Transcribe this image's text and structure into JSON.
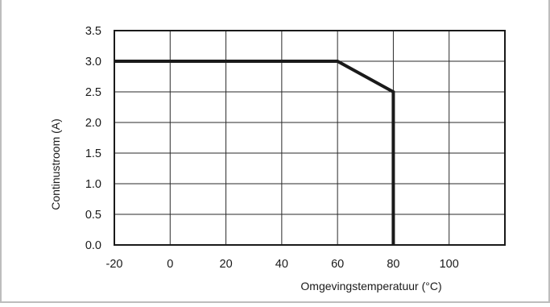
{
  "chart_data": {
    "type": "line",
    "title": "",
    "xlabel": "Omgevingstemperatuur (°C)",
    "ylabel": "Continustroom (A)",
    "xlim": [
      -20,
      120
    ],
    "ylim": [
      0,
      3.5
    ],
    "x_ticks": [
      -20,
      0,
      20,
      40,
      60,
      80,
      100
    ],
    "x_tick_labels": [
      "-20",
      "0",
      "20",
      "40",
      "60",
      "80",
      "100"
    ],
    "y_ticks": [
      0,
      0.5,
      1.0,
      1.5,
      2.0,
      2.5,
      3.0,
      3.5
    ],
    "y_tick_labels": [
      "0.0",
      "0.5",
      "1.0",
      "1.5",
      "2.0",
      "2.5",
      "3.0",
      "3.5"
    ],
    "grid": true,
    "legend": "none",
    "series": [
      {
        "x": [
          -20,
          60,
          80,
          80
        ],
        "y": [
          3.0,
          3.0,
          2.5,
          0.0
        ],
        "color": "#1a1a1a"
      }
    ],
    "colors": {
      "frame_border": "#bdbdbd",
      "grid": "#2a2a2a",
      "axes": "#1a1a1a",
      "series_line": "#1a1a1a"
    }
  }
}
